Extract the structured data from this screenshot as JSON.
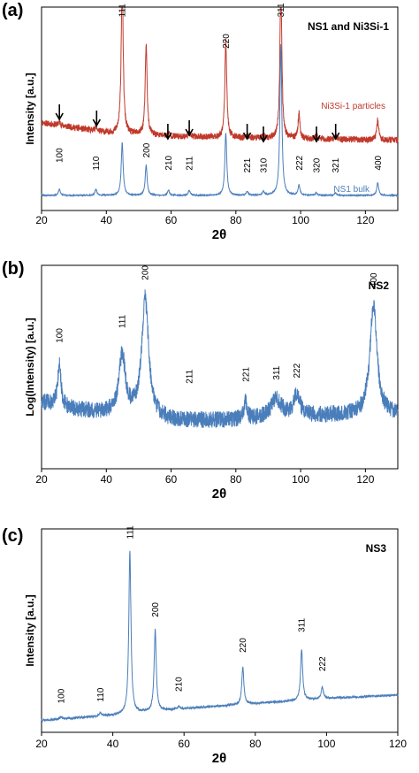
{
  "chart_data": [
    {
      "panel": "(a)",
      "type": "line",
      "tag": "NS1 and Ni3Si-1",
      "xlabel": "2θ",
      "ylabel": "Intensity [a.u.]",
      "xlim": [
        20,
        130
      ],
      "xticks": [
        20,
        40,
        60,
        80,
        100,
        120
      ],
      "grid": false,
      "series": [
        {
          "name": "Ni3Si-1 particles",
          "color": "#c0392b",
          "baseline": [
            [
              20,
              0.58
            ],
            [
              40,
              0.5
            ],
            [
              60,
              0.47
            ],
            [
              80,
              0.46
            ],
            [
              100,
              0.45
            ],
            [
              130,
              0.44
            ]
          ],
          "noise": 0.025,
          "peaks": [
            [
              25.5,
              0.03
            ],
            [
              36.8,
              0.04
            ],
            [
              44.9,
              1.27
            ],
            [
              52.3,
              0.72
            ],
            [
              59.2,
              0.03
            ],
            [
              65.6,
              0.03
            ],
            [
              76.9,
              0.77
            ],
            [
              83.5,
              0.02
            ],
            [
              88.5,
              0.02
            ],
            [
              93.9,
              1.23
            ],
            [
              99.5,
              0.2
            ],
            [
              104.9,
              0.03
            ],
            [
              110.8,
              0.03
            ],
            [
              123.8,
              0.16
            ]
          ]
        },
        {
          "name": "NS1 bulk",
          "color": "#4a7ebb",
          "baseline": [
            [
              20,
              0.0
            ],
            [
              130,
              0.0
            ]
          ],
          "noise": 0.004,
          "peaks": [
            [
              25.5,
              0.05
            ],
            [
              36.8,
              0.05
            ],
            [
              44.9,
              0.42
            ],
            [
              52.3,
              0.24
            ],
            [
              59.2,
              0.04
            ],
            [
              65.6,
              0.04
            ],
            [
              76.9,
              0.5
            ],
            [
              83.5,
              0.03
            ],
            [
              88.5,
              0.03
            ],
            [
              93.9,
              1.2
            ],
            [
              99.5,
              0.08
            ],
            [
              104.9,
              0.02
            ],
            [
              110.8,
              0.02
            ],
            [
              123.8,
              0.1
            ]
          ]
        }
      ],
      "arrow_positions": [
        25.5,
        37,
        59,
        65.6,
        83.5,
        88.5,
        104.9,
        110.8
      ],
      "peak_labels": [
        {
          "text": "111",
          "x": 44.9,
          "y": 1.42
        },
        {
          "text": "311",
          "x": 93.9,
          "y": 1.42
        },
        {
          "text": "220",
          "x": 76.9,
          "y": 1.17
        },
        {
          "text": "100",
          "x": 25.5,
          "y": 0.26
        },
        {
          "text": "110",
          "x": 36.8,
          "y": 0.2
        },
        {
          "text": "200",
          "x": 52.3,
          "y": 0.3
        },
        {
          "text": "210",
          "x": 59.2,
          "y": 0.2
        },
        {
          "text": "211",
          "x": 65.6,
          "y": 0.2
        },
        {
          "text": "221",
          "x": 83.5,
          "y": 0.18
        },
        {
          "text": "310",
          "x": 88.5,
          "y": 0.18
        },
        {
          "text": "222",
          "x": 99.5,
          "y": 0.2
        },
        {
          "text": "320",
          "x": 104.9,
          "y": 0.18
        },
        {
          "text": "321",
          "x": 110.8,
          "y": 0.18
        },
        {
          "text": "400",
          "x": 123.8,
          "y": 0.2
        }
      ]
    },
    {
      "panel": "(b)",
      "type": "line",
      "tag": "NS2",
      "xlabel": "2θ",
      "ylabel": "Log(Intensity) [a.u.]",
      "xlim": [
        20,
        130
      ],
      "xticks": [
        20,
        40,
        60,
        80,
        100,
        120
      ],
      "grid": false,
      "series": [
        {
          "name": "",
          "color": "#4a7ebb",
          "baseline": [
            [
              20,
              0.36
            ],
            [
              30,
              0.32
            ],
            [
              45,
              0.29
            ],
            [
              60,
              0.26
            ],
            [
              75,
              0.26
            ],
            [
              90,
              0.27
            ],
            [
              110,
              0.29
            ],
            [
              130,
              0.29
            ]
          ],
          "noise": 0.045,
          "peaks": [
            [
              25.5,
              0.23,
              0.6
            ],
            [
              44.9,
              0.32,
              1.2
            ],
            [
              52.0,
              0.64,
              1.3
            ],
            [
              83.0,
              0.09,
              0.6
            ],
            [
              92.5,
              0.1,
              2.0
            ],
            [
              98.8,
              0.12,
              1.2
            ],
            [
              122.5,
              0.6,
              1.3
            ]
          ]
        }
      ],
      "peak_labels": [
        {
          "text": "100",
          "x": 25.5,
          "y": 0.68
        },
        {
          "text": "111",
          "x": 44.9,
          "y": 0.76
        },
        {
          "text": "200",
          "x": 52.0,
          "y": 1.02
        },
        {
          "text": "211",
          "x": 65.6,
          "y": 0.46
        },
        {
          "text": "221",
          "x": 83.0,
          "y": 0.47
        },
        {
          "text": "311",
          "x": 92.5,
          "y": 0.48
        },
        {
          "text": "222",
          "x": 98.8,
          "y": 0.49
        },
        {
          "text": "400",
          "x": 122.5,
          "y": 0.98
        }
      ]
    },
    {
      "panel": "(c)",
      "type": "line",
      "tag": "NS3",
      "xlabel": "2θ",
      "ylabel": "Intensity [a.u.]",
      "xlim": [
        20,
        120
      ],
      "xticks": [
        20,
        40,
        60,
        80,
        100,
        120
      ],
      "grid": false,
      "series": [
        {
          "name": "",
          "color": "#4a7ebb",
          "baseline": [
            [
              20,
              0.0
            ],
            [
              40,
              0.03
            ],
            [
              60,
              0.07
            ],
            [
              80,
              0.1
            ],
            [
              100,
              0.13
            ],
            [
              120,
              0.15
            ]
          ],
          "noise": 0.006,
          "peaks": [
            [
              25.5,
              0.015
            ],
            [
              36.5,
              0.02
            ],
            [
              44.8,
              0.96
            ],
            [
              51.9,
              0.48
            ],
            [
              58.5,
              0.015
            ],
            [
              76.5,
              0.22
            ],
            [
              93.0,
              0.3
            ],
            [
              98.8,
              0.07
            ]
          ]
        }
      ],
      "peak_labels": [
        {
          "text": "100",
          "x": 25.5,
          "y": 0.1
        },
        {
          "text": "110",
          "x": 36.5,
          "y": 0.11
        },
        {
          "text": "111",
          "x": 44.8,
          "y": 1.07
        },
        {
          "text": "200",
          "x": 51.9,
          "y": 0.61
        },
        {
          "text": "210",
          "x": 58.5,
          "y": 0.17
        },
        {
          "text": "220",
          "x": 76.5,
          "y": 0.4
        },
        {
          "text": "311",
          "x": 93.0,
          "y": 0.52
        },
        {
          "text": "222",
          "x": 98.8,
          "y": 0.29
        }
      ]
    }
  ]
}
